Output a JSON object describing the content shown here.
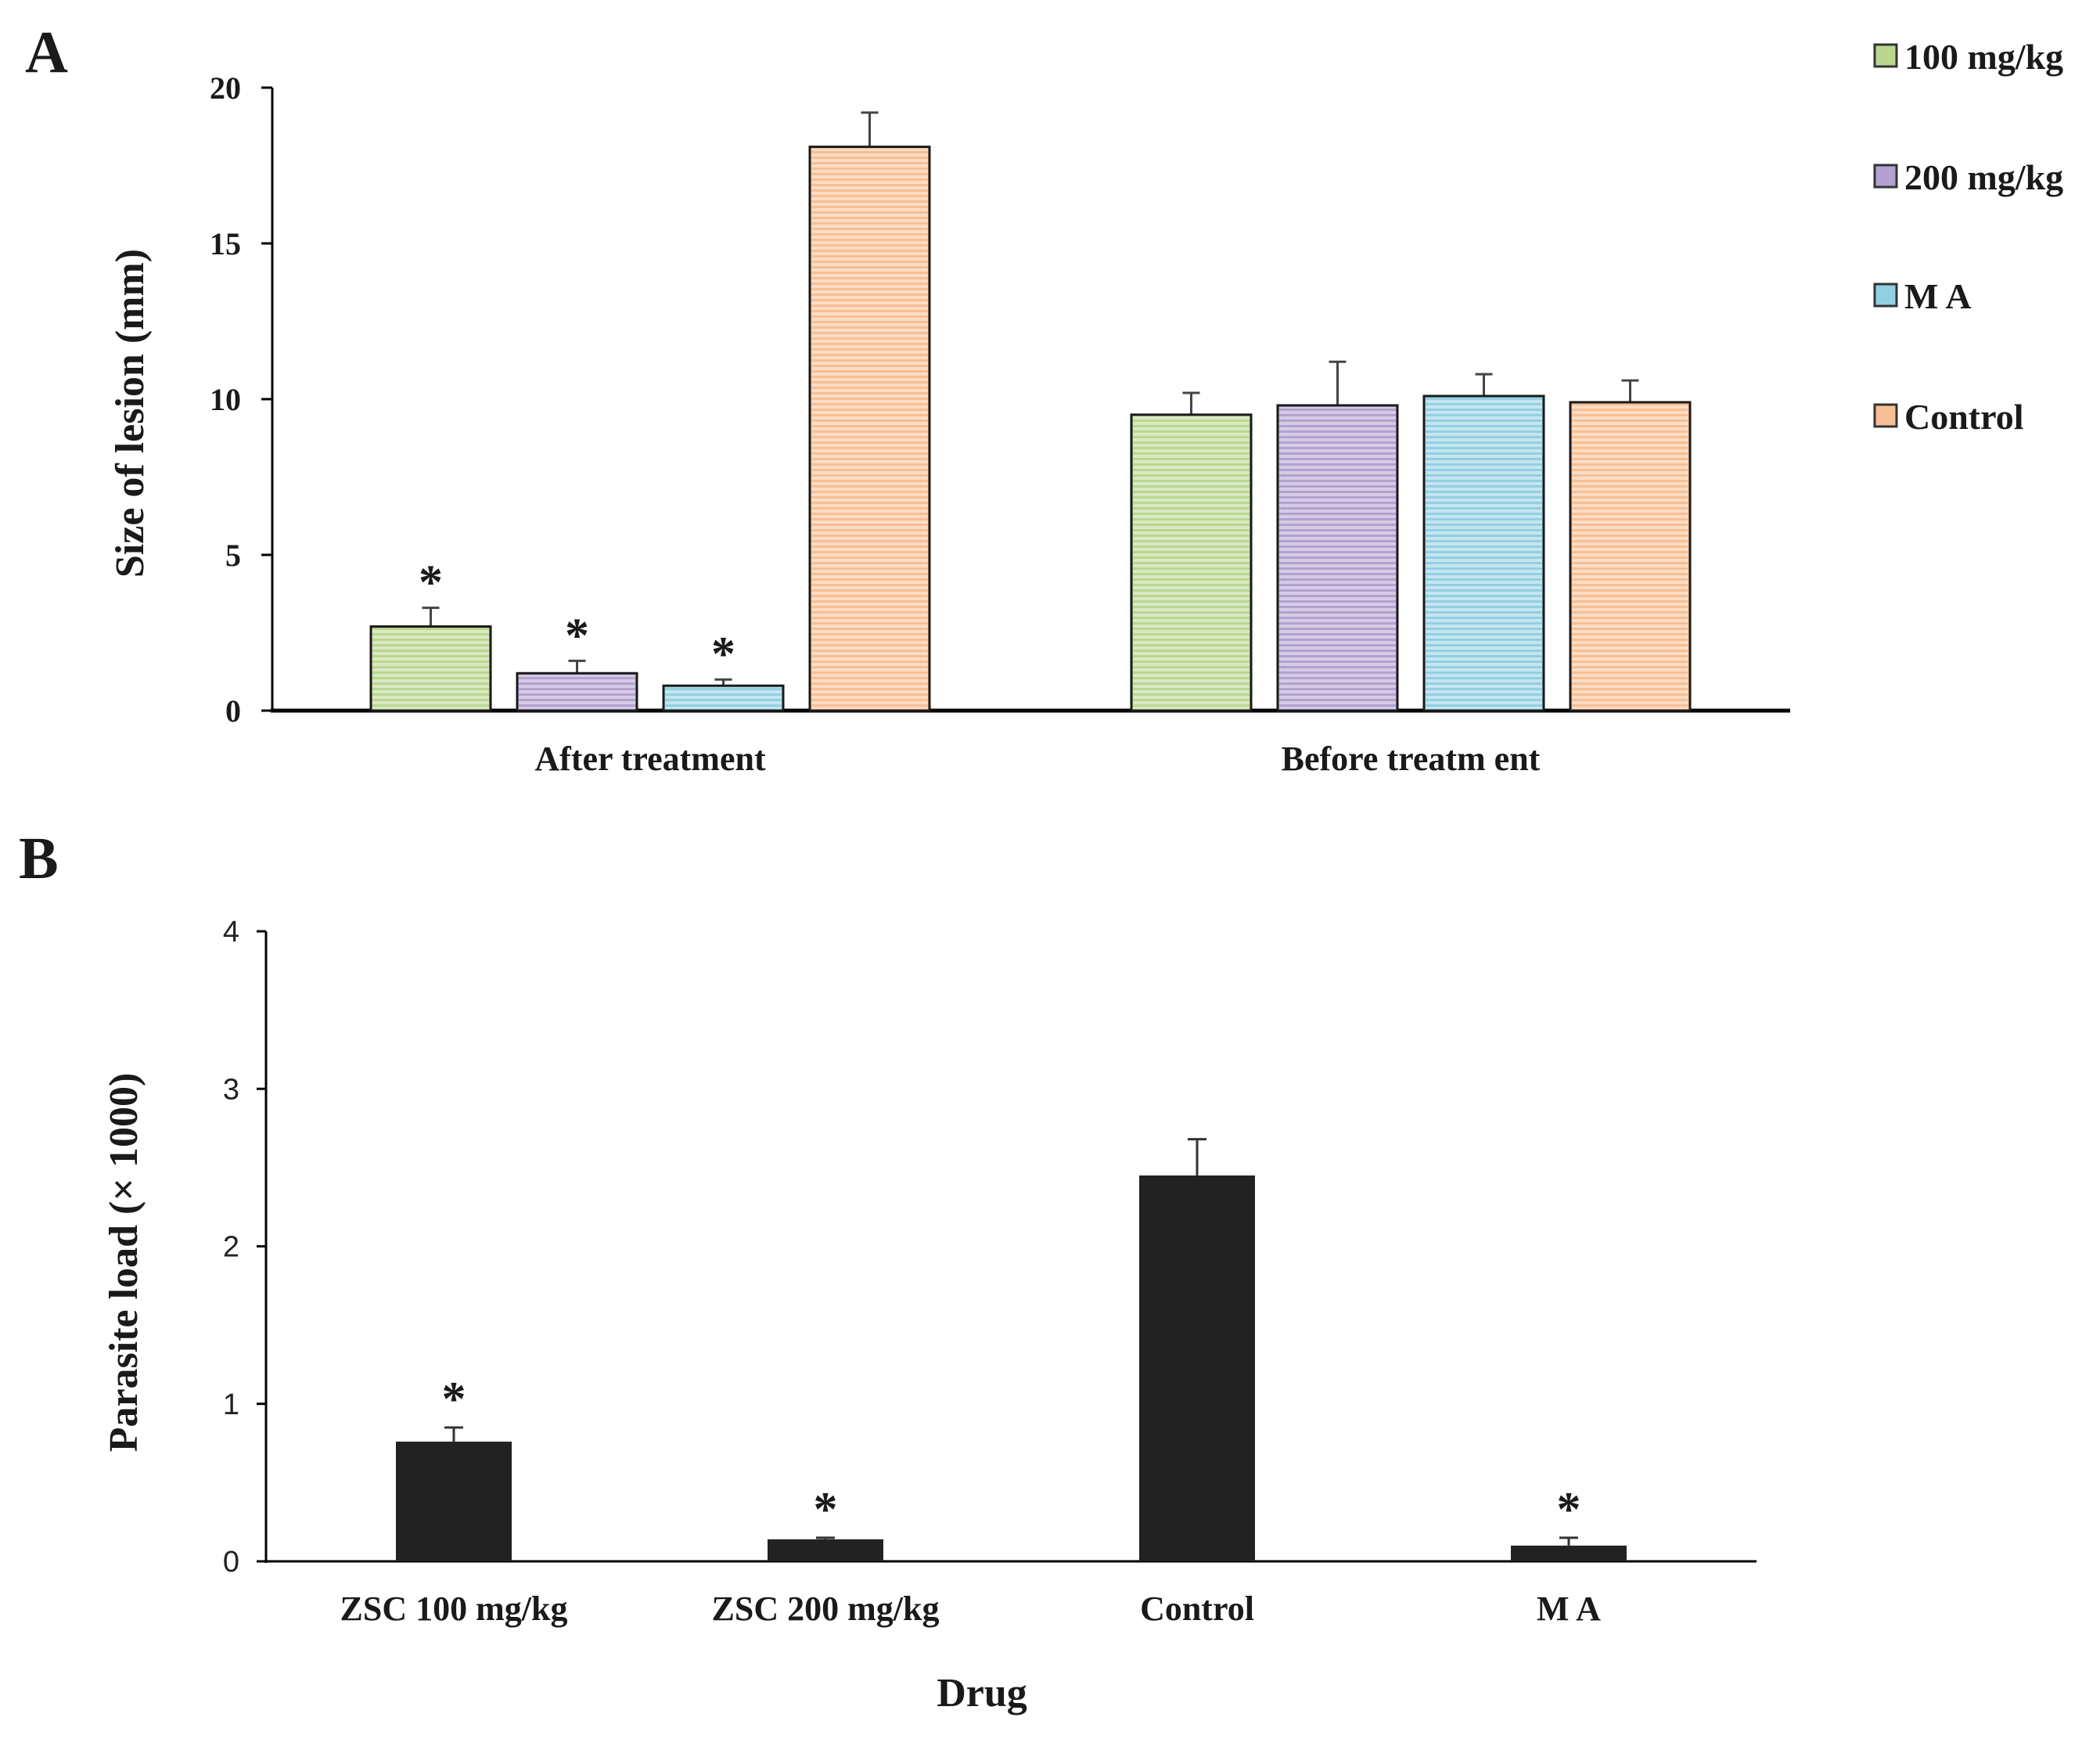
{
  "chart_data": [
    {
      "panel": "A",
      "type": "bar",
      "ylabel": "Size of lesion (mm)",
      "xlabel": "",
      "ylim": [
        0,
        20
      ],
      "yticks": [
        0,
        5,
        10,
        15,
        20
      ],
      "categories": [
        "After treatment",
        "Before treatment"
      ],
      "category_text": [
        "After treatment",
        "Before treatm ent"
      ],
      "legend": {
        "position": "right",
        "entries": [
          "100 mg/kg",
          "200 mg/kg",
          "M A",
          "Control"
        ]
      },
      "series": [
        {
          "name": "100 mg/kg",
          "color": "#b9d78f",
          "values": [
            2.7,
            9.5
          ],
          "errors": [
            0.6,
            0.7
          ],
          "significant": [
            "*",
            ""
          ]
        },
        {
          "name": "200 mg/kg",
          "color": "#b3a1d1",
          "values": [
            1.2,
            9.8
          ],
          "errors": [
            0.4,
            1.4
          ],
          "significant": [
            "*",
            ""
          ]
        },
        {
          "name": "MA",
          "color": "#93cfe2",
          "values": [
            0.8,
            10.1
          ],
          "errors": [
            0.2,
            0.7
          ],
          "significant": [
            "*",
            ""
          ]
        },
        {
          "name": "Control",
          "color": "#f7bf93",
          "values": [
            18.1,
            9.9
          ],
          "errors": [
            1.1,
            0.7
          ],
          "significant": [
            "",
            ""
          ]
        }
      ]
    },
    {
      "panel": "B",
      "type": "bar",
      "ylabel": "Parasite load (× 1000)",
      "xlabel": "Drug",
      "ylim": [
        0,
        4
      ],
      "yticks": [
        0,
        1,
        2,
        3,
        4
      ],
      "categories": [
        "ZSC 100 mg/kg",
        "ZSC 200 mg/kg",
        "Control",
        "M A"
      ],
      "series": [
        {
          "name": "Parasite load",
          "color": "#222222",
          "values": [
            0.76,
            0.14,
            2.45,
            0.1
          ],
          "errors": [
            0.09,
            0.01,
            0.23,
            0.05
          ],
          "significant": [
            "*",
            "*",
            "",
            "*"
          ]
        }
      ]
    }
  ]
}
